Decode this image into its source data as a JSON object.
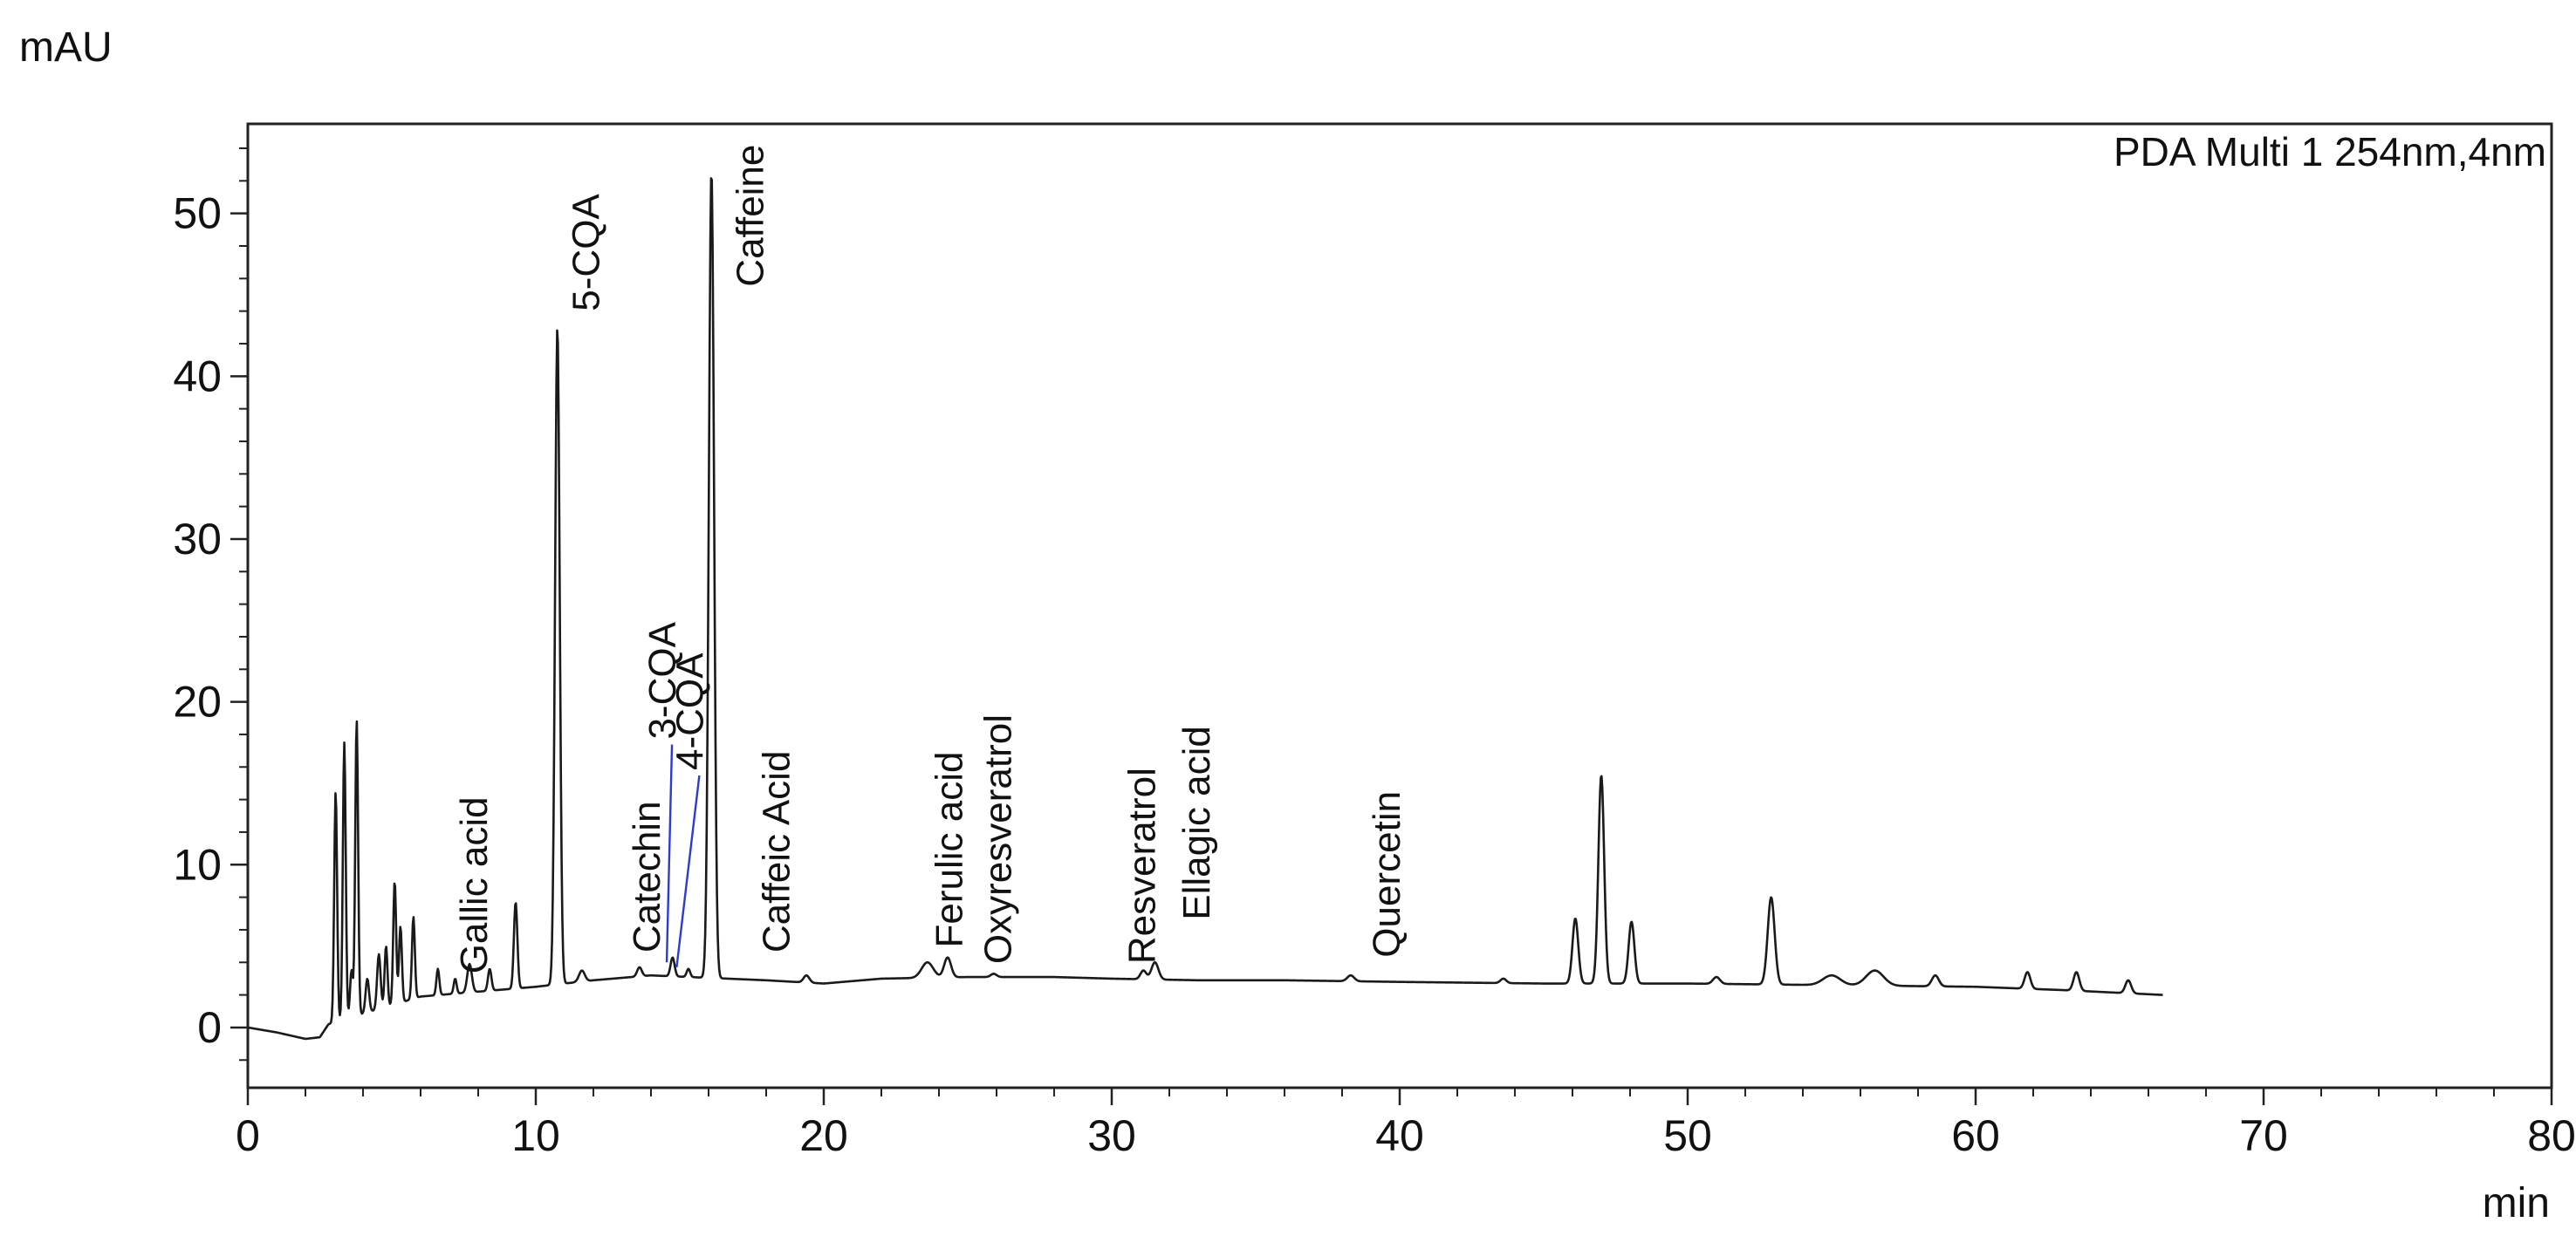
{
  "chart_data": {
    "type": "line",
    "title": "",
    "detector_label": "PDA Multi 1 254nm,4nm",
    "xlabel": "min",
    "ylabel": "mAU",
    "xlim": [
      0,
      80
    ],
    "ylim": [
      -3.7,
      55.5
    ],
    "x_ticks": [
      0,
      10,
      20,
      30,
      40,
      50,
      60,
      70,
      80
    ],
    "y_ticks": [
      0,
      10,
      20,
      30,
      40,
      50
    ],
    "x_minor_step": 2,
    "y_minor_step": 2,
    "grid": false,
    "legend": "none",
    "line_color": "#1a1a1a",
    "leader_color": "#2b3bd6",
    "baseline": [
      [
        0,
        0
      ],
      [
        1,
        -0.3
      ],
      [
        2,
        -0.7
      ],
      [
        2.5,
        -0.6
      ],
      [
        2.8,
        0.2
      ],
      [
        6,
        1.9
      ],
      [
        8,
        2.2
      ],
      [
        10,
        2.5
      ],
      [
        12,
        2.9
      ],
      [
        14,
        3.2
      ],
      [
        18,
        2.9
      ],
      [
        20,
        2.7
      ],
      [
        22,
        3.0
      ],
      [
        25,
        3.1
      ],
      [
        28,
        3.1
      ],
      [
        30,
        3.0
      ],
      [
        33,
        2.9
      ],
      [
        36,
        2.9
      ],
      [
        40,
        2.8
      ],
      [
        45,
        2.7
      ],
      [
        50,
        2.7
      ],
      [
        55,
        2.6
      ],
      [
        60,
        2.5
      ],
      [
        63,
        2.3
      ],
      [
        66.5,
        2.0
      ]
    ],
    "peaks": [
      {
        "rt": 3.05,
        "height": 14.5,
        "width": 0.05
      },
      {
        "rt": 3.35,
        "height": 17.5,
        "width": 0.05
      },
      {
        "rt": 3.6,
        "height": 3.5,
        "width": 0.05
      },
      {
        "rt": 3.78,
        "height": 18.9,
        "width": 0.05
      },
      {
        "rt": 4.15,
        "height": 3.0,
        "width": 0.06
      },
      {
        "rt": 4.55,
        "height": 4.5,
        "width": 0.06
      },
      {
        "rt": 4.8,
        "height": 5.0,
        "width": 0.05
      },
      {
        "rt": 5.1,
        "height": 9.0,
        "width": 0.05
      },
      {
        "rt": 5.3,
        "height": 6.2,
        "width": 0.05
      },
      {
        "rt": 5.75,
        "height": 6.8,
        "width": 0.05
      },
      {
        "rt": 6.6,
        "height": 3.6,
        "width": 0.05
      },
      {
        "rt": 7.2,
        "height": 3.0,
        "width": 0.05
      },
      {
        "rt": 7.7,
        "height": 3.9,
        "width": 0.08
      },
      {
        "rt": 8.4,
        "height": 3.6,
        "width": 0.06
      },
      {
        "rt": 9.3,
        "height": 7.7,
        "width": 0.06
      },
      {
        "rt": 10.75,
        "height": 43.0,
        "width": 0.08
      },
      {
        "rt": 11.6,
        "height": 3.5,
        "width": 0.1
      },
      {
        "rt": 13.6,
        "height": 3.7,
        "width": 0.08
      },
      {
        "rt": 14.75,
        "height": 4.3,
        "width": 0.07
      },
      {
        "rt": 15.3,
        "height": 3.6,
        "width": 0.06
      },
      {
        "rt": 16.1,
        "height": 52.6,
        "width": 0.09
      },
      {
        "rt": 19.4,
        "height": 3.2,
        "width": 0.1
      },
      {
        "rt": 23.6,
        "height": 4.0,
        "width": 0.2
      },
      {
        "rt": 24.3,
        "height": 4.3,
        "width": 0.12
      },
      {
        "rt": 25.9,
        "height": 3.3,
        "width": 0.1
      },
      {
        "rt": 31.1,
        "height": 3.5,
        "width": 0.1
      },
      {
        "rt": 31.5,
        "height": 4.0,
        "width": 0.12
      },
      {
        "rt": 38.3,
        "height": 3.2,
        "width": 0.12
      },
      {
        "rt": 43.6,
        "height": 3.0,
        "width": 0.1
      },
      {
        "rt": 46.1,
        "height": 6.7,
        "width": 0.1
      },
      {
        "rt": 47.0,
        "height": 15.5,
        "width": 0.1
      },
      {
        "rt": 48.05,
        "height": 6.5,
        "width": 0.1
      },
      {
        "rt": 51.0,
        "height": 3.1,
        "width": 0.12
      },
      {
        "rt": 52.9,
        "height": 8.0,
        "width": 0.12
      },
      {
        "rt": 55.0,
        "height": 3.2,
        "width": 0.3
      },
      {
        "rt": 56.5,
        "height": 3.5,
        "width": 0.3
      },
      {
        "rt": 58.6,
        "height": 3.2,
        "width": 0.12
      },
      {
        "rt": 61.8,
        "height": 3.4,
        "width": 0.1
      },
      {
        "rt": 63.5,
        "height": 3.4,
        "width": 0.1
      },
      {
        "rt": 65.3,
        "height": 2.9,
        "width": 0.1
      }
    ],
    "annotations": [
      {
        "label": "Gallic acid",
        "rt": 8.3,
        "label_y": 3.3
      },
      {
        "label": "5-CQA",
        "rt": 12.2,
        "label_y": 44.0
      },
      {
        "label": "Catechin",
        "rt": 14.3,
        "label_y": 4.6
      },
      {
        "label": "3-CQA",
        "rt": 14.85,
        "label_y": 17.7,
        "leader_to": 4.0
      },
      {
        "label": "4-CQA",
        "rt": 15.8,
        "label_y": 15.8,
        "leader_to": 3.7
      },
      {
        "label": "Caffeine",
        "rt": 17.9,
        "label_y": 45.5
      },
      {
        "label": "Caffeic Acid",
        "rt": 18.8,
        "label_y": 4.6
      },
      {
        "label": "Ferulic acid",
        "rt": 24.8,
        "label_y": 4.9
      },
      {
        "label": "Oxyresveratrol",
        "rt": 26.5,
        "label_y": 3.9
      },
      {
        "label": "Resveratrol",
        "rt": 31.5,
        "label_y": 3.9
      },
      {
        "label": "Ellagic acid",
        "rt": 33.4,
        "label_y": 6.6
      },
      {
        "label": "Quercetin",
        "rt": 40.0,
        "label_y": 4.3
      }
    ]
  }
}
